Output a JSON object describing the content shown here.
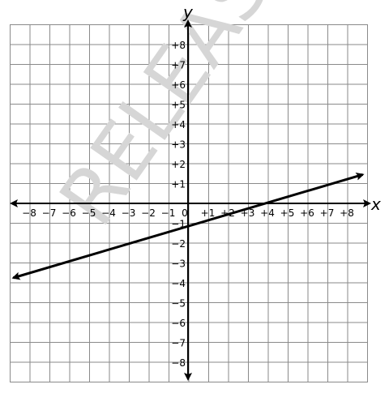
{
  "chart_data": {
    "type": "line",
    "title": "",
    "xlabel": "x",
    "ylabel": "y",
    "xlim": [
      -8.8,
      8.8
    ],
    "ylim": [
      -8.8,
      8.8
    ],
    "grid": true,
    "x_ticks": [
      "−8",
      "−7",
      "−6",
      "−5",
      "−4",
      "−3",
      "−2",
      "−1",
      "0",
      "+1",
      "+2",
      "+3",
      "+4",
      "+5",
      "+6",
      "+7",
      "+8"
    ],
    "y_ticks_positive": [
      "+1",
      "+2",
      "+3",
      "+4",
      "+5",
      "+6",
      "+7",
      "+8"
    ],
    "y_ticks_negative": [
      "−1",
      "−2",
      "−3",
      "−4",
      "−5",
      "−6",
      "−7",
      "−8"
    ],
    "series": [
      {
        "points": [
          [
            -8.8,
            -3.75
          ],
          [
            8.8,
            1.45
          ]
        ],
        "arrows": "both",
        "color": "#000000"
      }
    ],
    "watermark": "RELEASED"
  }
}
